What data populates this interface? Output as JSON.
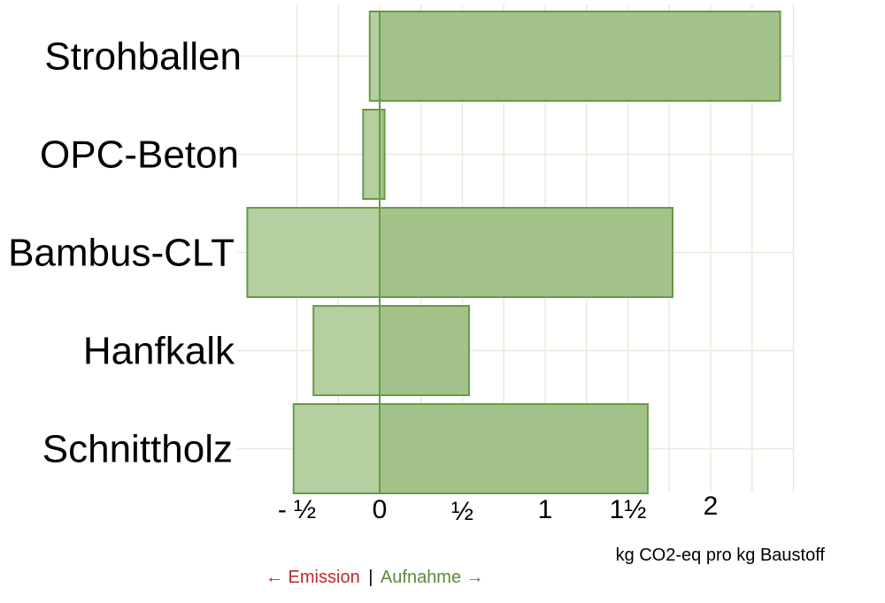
{
  "chart_data": {
    "type": "bar",
    "orientation": "horizontal",
    "categories": [
      "Strohballen",
      "OPC-Beton",
      "Bambus-CLT",
      "Hanfkalk",
      "Schnittholz"
    ],
    "series": [
      {
        "name": "Emission",
        "values": [
          -0.06,
          -0.1,
          -0.8,
          -0.4,
          -0.52
        ]
      },
      {
        "name": "Aufnahme",
        "values": [
          2.42,
          0.03,
          1.77,
          0.54,
          1.62
        ]
      }
    ],
    "xticks": [
      {
        "value": -0.5,
        "label": "- ½"
      },
      {
        "value": 0,
        "label": "0"
      },
      {
        "value": 0.5,
        "label": "½"
      },
      {
        "value": 1,
        "label": "1"
      },
      {
        "value": 1.5,
        "label": "1½"
      },
      {
        "value": 2,
        "label": "2"
      }
    ],
    "xlim": [
      -0.8,
      2.6
    ],
    "xlabel": "kg CO2-eq pro kg Baustoff",
    "grid": true,
    "colors": {
      "emission_fill": "#b5cfa0",
      "uptake_fill": "#a3c28a",
      "bar_stroke": "#6a9a45",
      "grid": "#e3eedb"
    }
  },
  "legend": {
    "emission": "← Emission",
    "separator": "|",
    "uptake": "Aufnahme →"
  }
}
